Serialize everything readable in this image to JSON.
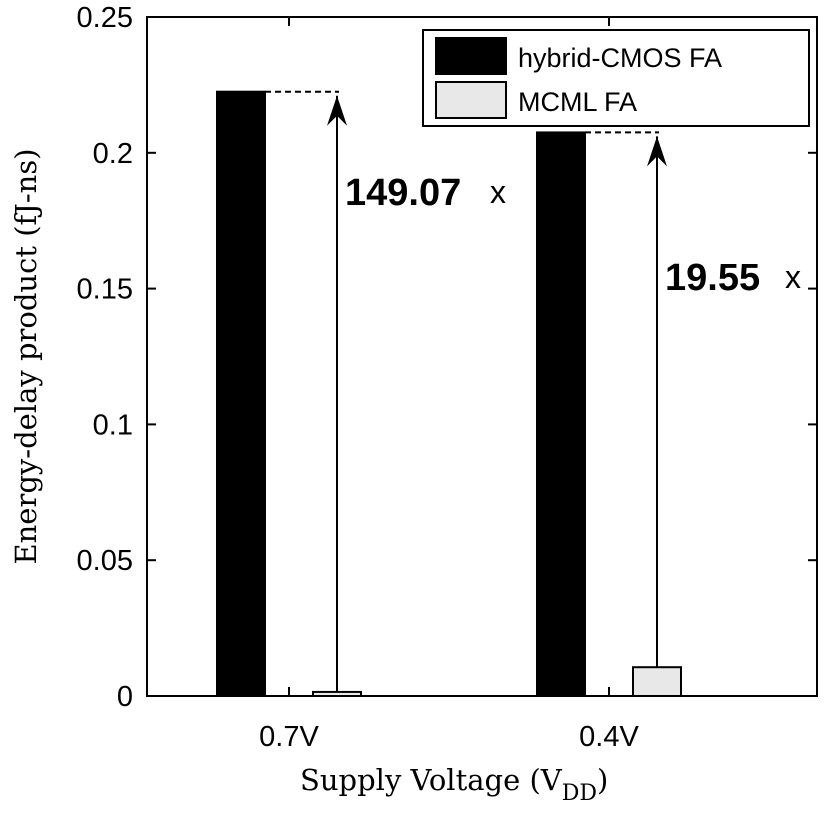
{
  "chart_data": {
    "type": "bar",
    "categories": [
      "0.7V",
      "0.4V"
    ],
    "series": [
      {
        "name": "hybrid-CMOS FA",
        "values": [
          0.2225,
          0.2075
        ],
        "color": "#000000"
      },
      {
        "name": "MCML FA",
        "values": [
          0.0015,
          0.0106
        ],
        "color": "#e8e8e8"
      }
    ],
    "xlabel_main": "Supply Voltage  (V",
    "xlabel_sub": "DD",
    "xlabel_close": ")",
    "ylabel": "Energy-delay product  (fJ-ns)",
    "ylim": [
      0,
      0.25
    ],
    "yticks": [
      0,
      0.05,
      0.1,
      0.15,
      0.2,
      0.25
    ],
    "ytick_labels": [
      "0",
      "0.05",
      "0.1",
      "0.15",
      "0.2",
      "0.25"
    ],
    "legend_position": "top-right",
    "grid": false,
    "annotations": [
      {
        "category": "0.7V",
        "ratio_number": "149.07",
        "ratio_suffix": "x"
      },
      {
        "category": "0.4V",
        "ratio_number": "19.55",
        "ratio_suffix": "x"
      }
    ]
  }
}
